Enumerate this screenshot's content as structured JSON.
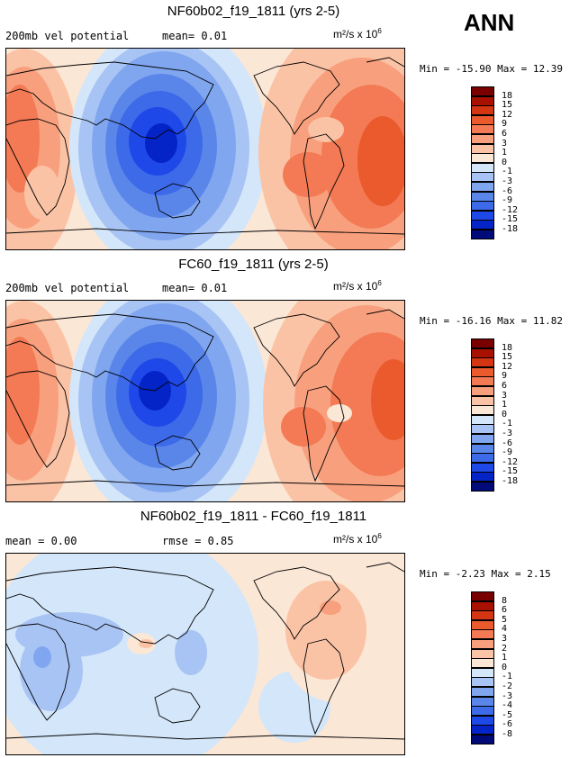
{
  "season": "ANN",
  "colors": {
    "abs_fills": [
      "#000a78",
      "#0424c8",
      "#1e48e8",
      "#3c6ae8",
      "#5a86ea",
      "#80a6ef",
      "#a8c4f4",
      "#d4e6fa",
      "#fbe7d6",
      "#fbc3a6",
      "#f8a07e",
      "#f37a54",
      "#ea5a2c",
      "#d43512",
      "#a81000",
      "#7a0000"
    ],
    "diff_fills": [
      "#000a78",
      "#0424c8",
      "#1e48e8",
      "#3c6ae8",
      "#5a86ea",
      "#80a6ef",
      "#a8c4f4",
      "#d4e6fa",
      "#fbe7d6",
      "#fbc3a6",
      "#f8a07e",
      "#f37a54",
      "#ea5a2c",
      "#d43512",
      "#a81000",
      "#7a0000"
    ]
  },
  "panels": [
    {
      "title": "NF60b02_f19_1811 (yrs 2-5)",
      "left_label": "200mb vel potential",
      "stat_label": "mean= ",
      "stat_value": "0.01",
      "extra_label": "",
      "extra_value": "",
      "units": "m²/s x 10",
      "units_exp": "6",
      "min_label": "Min = ",
      "min_value": "-15.90",
      "max_label": " Max = ",
      "max_value": "12.39",
      "colorbar_levels": [
        "-18",
        "-15",
        "-12",
        "-9",
        "-6",
        "-3",
        "-1",
        "0",
        "1",
        "3",
        "6",
        "9",
        "12",
        "15",
        "18"
      ],
      "map_type": "abs"
    },
    {
      "title": "FC60_f19_1811 (yrs 2-5)",
      "left_label": "200mb vel potential",
      "stat_label": "mean= ",
      "stat_value": "0.01",
      "extra_label": "",
      "extra_value": "",
      "units": "m²/s x 10",
      "units_exp": "6",
      "min_label": "Min = ",
      "min_value": "-16.16",
      "max_label": " Max = ",
      "max_value": "11.82",
      "colorbar_levels": [
        "-18",
        "-15",
        "-12",
        "-9",
        "-6",
        "-3",
        "-1",
        "0",
        "1",
        "3",
        "6",
        "9",
        "12",
        "15",
        "18"
      ],
      "map_type": "abs"
    },
    {
      "title": "NF60b02_f19_1811 - FC60_f19_1811",
      "left_label": "mean = ",
      "stat_label": "",
      "stat_value": "0.00",
      "extra_label": "rmse = ",
      "extra_value": "0.85",
      "units": "m²/s x 10",
      "units_exp": "6",
      "min_label": "Min = ",
      "min_value": "-2.23",
      "max_label": " Max = ",
      "max_value": "2.15",
      "colorbar_levels": [
        "-8",
        "-6",
        "-5",
        "-4",
        "-3",
        "-2",
        "-1",
        "0",
        "1",
        "2",
        "3",
        "4",
        "5",
        "6",
        "8"
      ],
      "map_type": "diff"
    }
  ]
}
